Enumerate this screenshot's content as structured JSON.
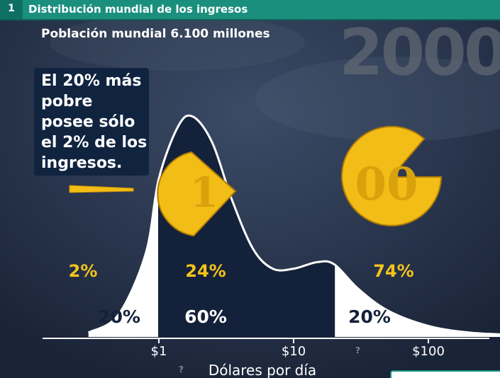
{
  "header": {
    "number": "1",
    "title": "Distribución mundial de los ingresos"
  },
  "population_label": "Población mundial 6.100 millones",
  "year_watermark": "2000",
  "callout": "El 20% más pobre posee sólo el 2% de los ingresos.",
  "help_marks": [
    "?",
    "?"
  ],
  "coins": {
    "left_label": "1",
    "right_label": "00"
  },
  "colors": {
    "header": "#1b8f7e",
    "background": "#22304a",
    "gold": "#f4c31b",
    "white": "#ffffff"
  },
  "chart_data": {
    "type": "area",
    "title": "Distribución mundial de los ingresos",
    "xlabel": "Dólares por día",
    "x_scale": "log",
    "x_ticks": [
      {
        "value": 1,
        "label": "$1"
      },
      {
        "value": 10,
        "label": "$10"
      },
      {
        "value": 100,
        "label": "$100"
      }
    ],
    "segments": [
      {
        "range": "< $1",
        "population_share": "20%",
        "income_share": "2%",
        "fill": "white"
      },
      {
        "range": "$1 – $20",
        "population_share": "60%",
        "income_share": "24%",
        "fill": "dark"
      },
      {
        "range": "> $20",
        "population_share": "20%",
        "income_share": "74%",
        "fill": "white"
      }
    ],
    "curve": {
      "x": [
        0.3,
        0.5,
        0.8,
        1.0,
        1.4,
        1.8,
        2.5,
        3.5,
        5,
        7,
        10,
        15,
        20,
        30,
        50,
        100,
        200,
        400
      ],
      "y": [
        0.02,
        0.1,
        0.38,
        0.72,
        0.96,
        1.0,
        0.88,
        0.62,
        0.4,
        0.31,
        0.31,
        0.34,
        0.33,
        0.22,
        0.12,
        0.05,
        0.02,
        0.01
      ]
    }
  }
}
